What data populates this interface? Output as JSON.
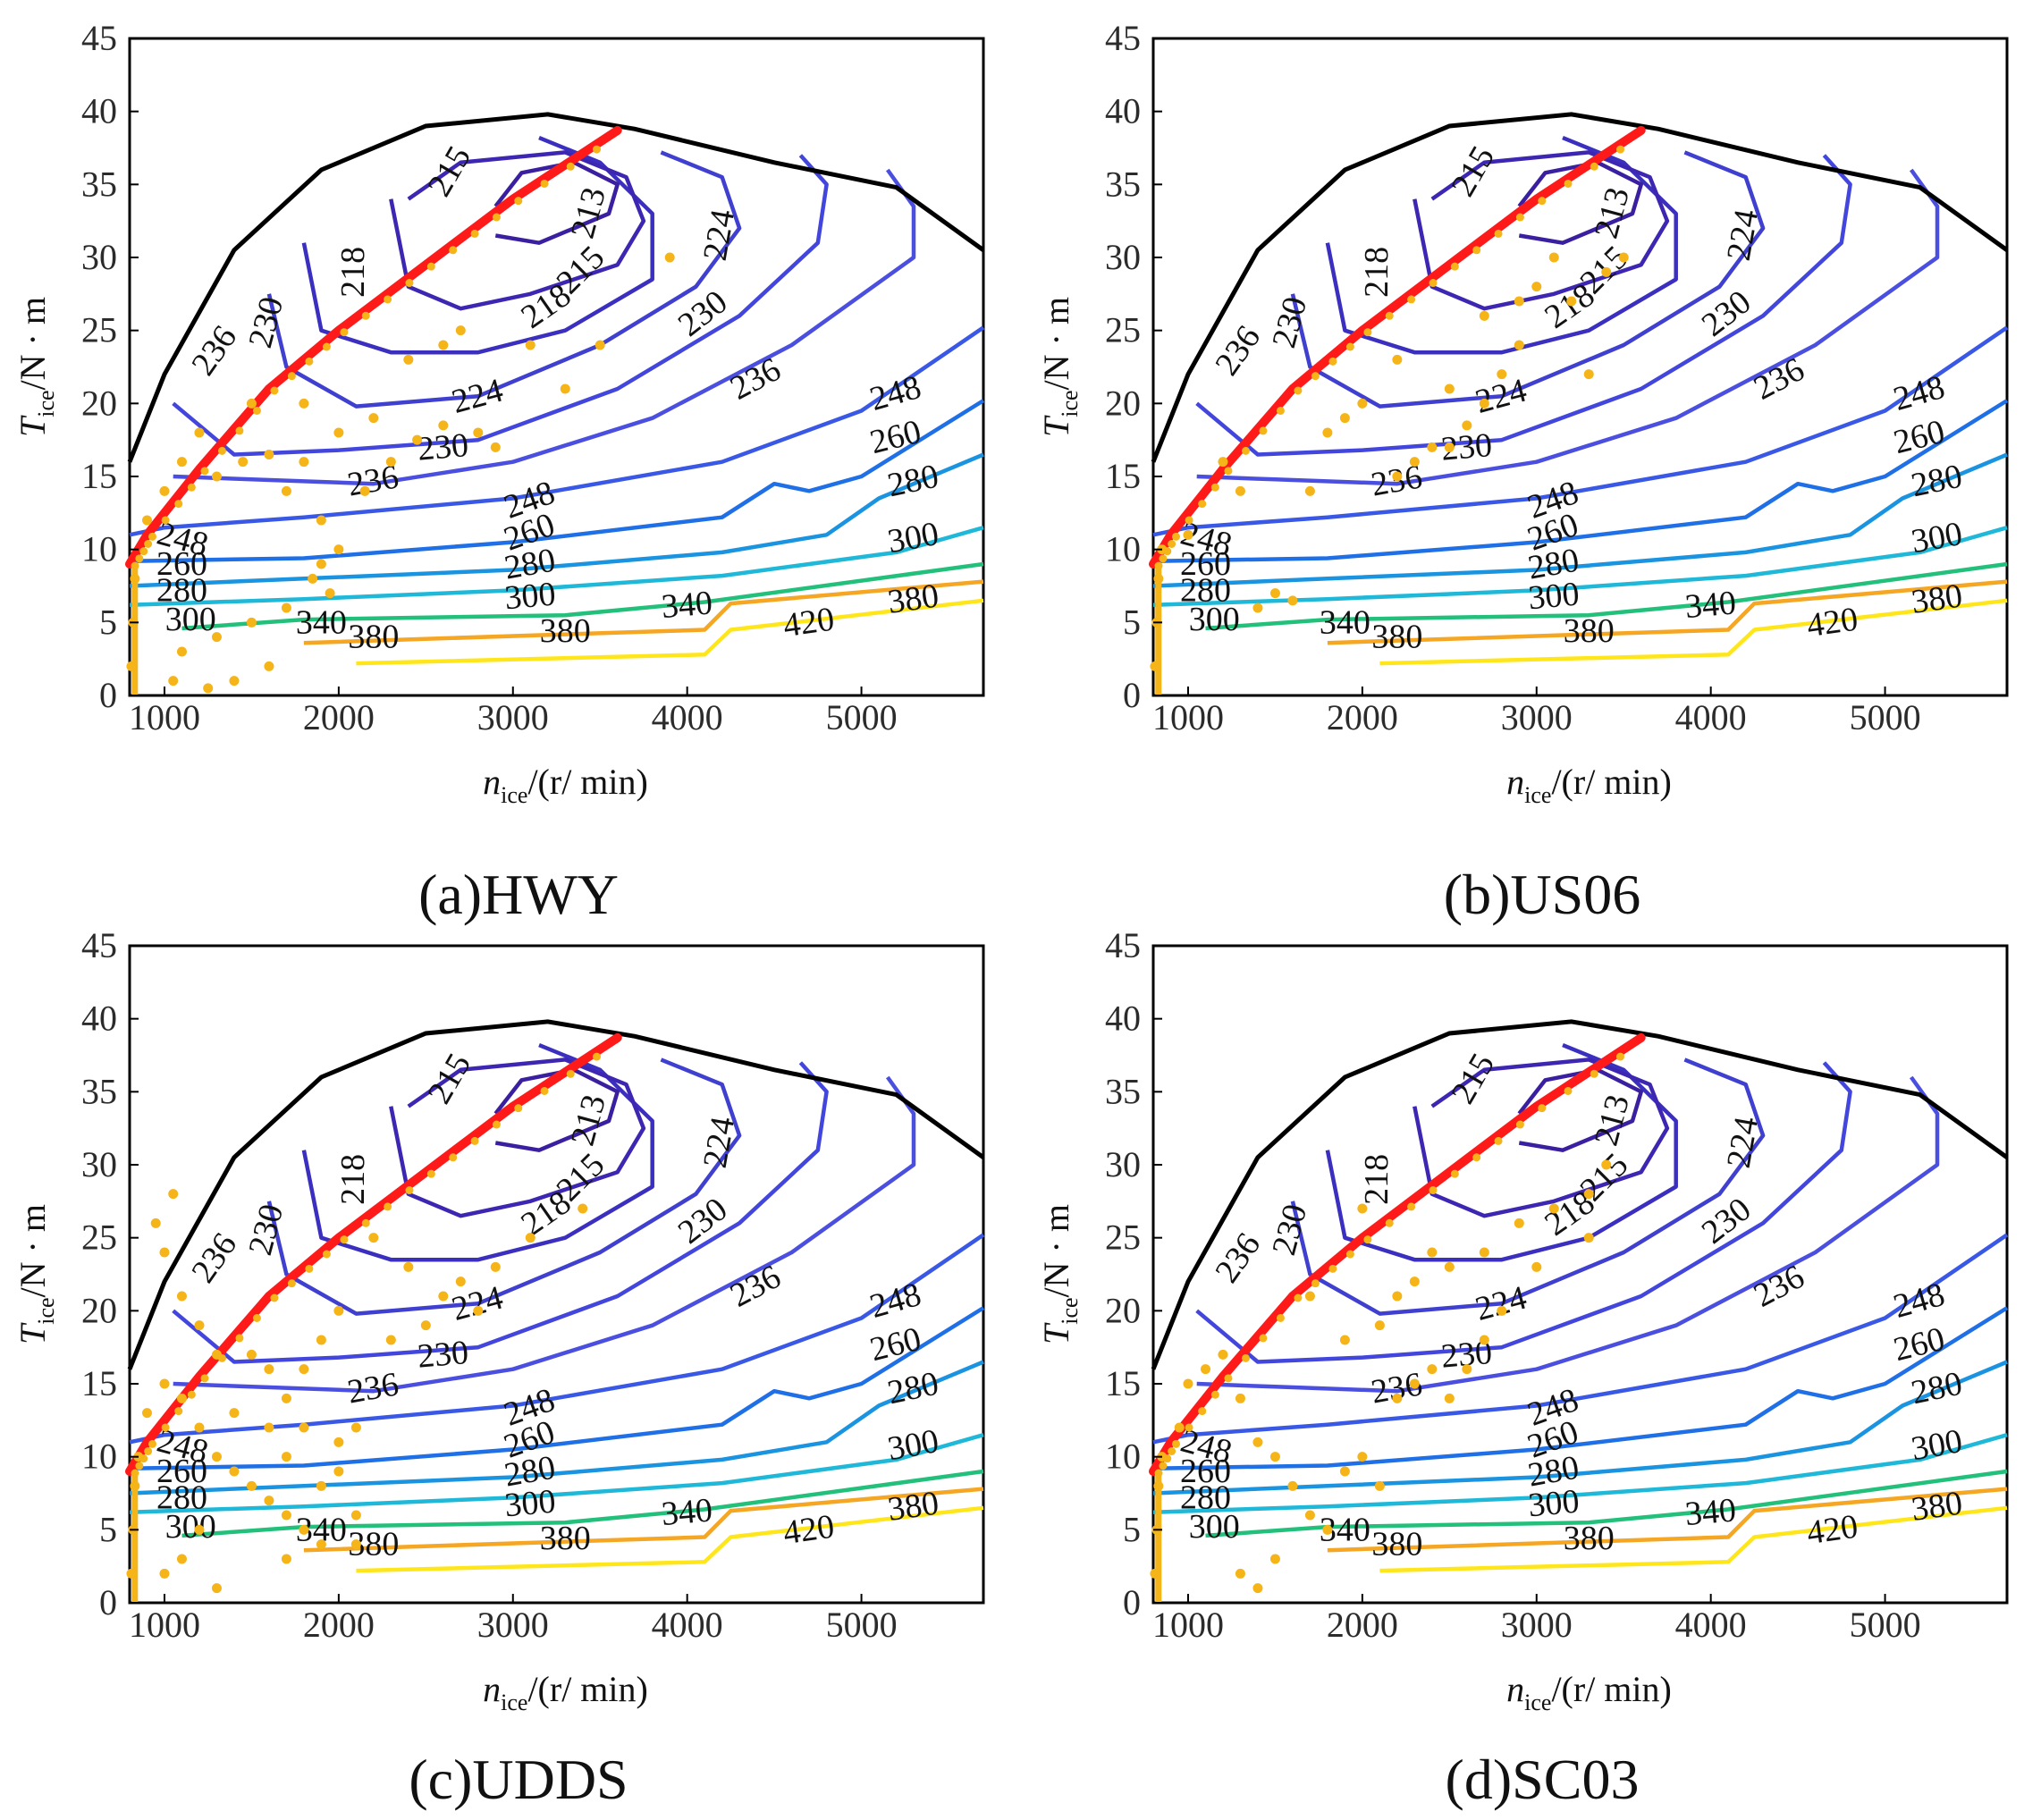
{
  "figure": {
    "colors": {
      "boundary": "#000000",
      "ool": "#ff1a1a",
      "points": "#f5b417",
      "contours": {
        "213": "#3a1fa0",
        "215": "#3d26b2",
        "218": "#3b2fc0",
        "224": "#3f3fd0",
        "230": "#4346dc",
        "236": "#4b4fe0",
        "248": "#3a58e6",
        "260": "#1f6fe6",
        "280": "#1a94e0",
        "300": "#1fb8d8",
        "340": "#22c07a",
        "380": "#f5a623",
        "420": "#ffe61a"
      }
    },
    "axis_text": {
      "x_main": "n",
      "x_sub": "ice",
      "x_unit": "/(r/ min)",
      "y_main": "T",
      "y_sub": "ice",
      "y_unit": "/N · m"
    }
  },
  "chart_data": [
    {
      "type": "contour",
      "panel": "(a)",
      "title": "(a)HWY",
      "xlabel": "n_ice/(r/min)",
      "ylabel": "T_ice/N·m",
      "xlim": [
        800,
        5700
      ],
      "ylim": [
        0,
        45
      ],
      "xticks": [
        1000,
        2000,
        3000,
        4000,
        5000
      ],
      "yticks": [
        0,
        5,
        10,
        15,
        20,
        25,
        30,
        35,
        40,
        45
      ],
      "contour_levels": [
        213,
        215,
        218,
        224,
        230,
        236,
        248,
        260,
        280,
        300,
        340,
        380,
        420
      ],
      "max_torque_boundary": [
        [
          800,
          16
        ],
        [
          1000,
          22
        ],
        [
          1400,
          30.5
        ],
        [
          1900,
          36
        ],
        [
          2500,
          39
        ],
        [
          3200,
          39.8
        ],
        [
          3700,
          38.8
        ],
        [
          4500,
          36.5
        ],
        [
          5200,
          34.8
        ],
        [
          5700,
          30.5
        ]
      ],
      "optimal_line": [
        [
          800,
          9
        ],
        [
          900,
          11
        ],
        [
          1200,
          15.5
        ],
        [
          1600,
          21
        ],
        [
          2000,
          25
        ],
        [
          2500,
          29.5
        ],
        [
          3000,
          34
        ],
        [
          3600,
          38.7
        ]
      ],
      "operating_points": [
        [
          810,
          2
        ],
        [
          820,
          5
        ],
        [
          830,
          8
        ],
        [
          900,
          12
        ],
        [
          1000,
          14
        ],
        [
          1100,
          16
        ],
        [
          1300,
          15
        ],
        [
          1450,
          16
        ],
        [
          1600,
          16.5
        ],
        [
          1700,
          14
        ],
        [
          1800,
          16
        ],
        [
          1900,
          12
        ],
        [
          2000,
          10
        ],
        [
          1850,
          8
        ],
        [
          1950,
          7
        ],
        [
          1700,
          6
        ],
        [
          1500,
          5
        ],
        [
          1300,
          4
        ],
        [
          1100,
          3
        ],
        [
          1050,
          1
        ],
        [
          1250,
          0.5
        ],
        [
          1400,
          1
        ],
        [
          1600,
          2
        ],
        [
          1900,
          9
        ],
        [
          2150,
          14
        ],
        [
          2300,
          16
        ],
        [
          2450,
          17.5
        ],
        [
          2600,
          18.5
        ],
        [
          2800,
          18
        ],
        [
          2400,
          23
        ],
        [
          2600,
          24
        ],
        [
          2700,
          25
        ],
        [
          3100,
          24
        ],
        [
          3500,
          24
        ],
        [
          3900,
          30
        ],
        [
          3300,
          21
        ],
        [
          2900,
          17
        ],
        [
          1800,
          20
        ],
        [
          1500,
          20
        ],
        [
          1200,
          18
        ],
        [
          2000,
          18
        ],
        [
          2200,
          19
        ]
      ]
    },
    {
      "type": "contour",
      "panel": "(b)",
      "title": "(b)US06",
      "xlabel": "n_ice/(r/min)",
      "ylabel": "T_ice/N·m",
      "xlim": [
        800,
        5700
      ],
      "ylim": [
        0,
        45
      ],
      "xticks": [
        1000,
        2000,
        3000,
        4000,
        5000
      ],
      "yticks": [
        0,
        5,
        10,
        15,
        20,
        25,
        30,
        35,
        40,
        45
      ],
      "contour_levels": [
        213,
        215,
        218,
        224,
        230,
        236,
        248,
        260,
        280,
        300,
        340,
        380,
        420
      ],
      "max_torque_boundary": [
        [
          800,
          16
        ],
        [
          1000,
          22
        ],
        [
          1400,
          30.5
        ],
        [
          1900,
          36
        ],
        [
          2500,
          39
        ],
        [
          3200,
          39.8
        ],
        [
          3700,
          38.8
        ],
        [
          4500,
          36.5
        ],
        [
          5200,
          34.8
        ],
        [
          5700,
          30.5
        ]
      ],
      "optimal_line": [
        [
          800,
          9
        ],
        [
          900,
          11
        ],
        [
          1200,
          15.5
        ],
        [
          1600,
          21
        ],
        [
          2000,
          25
        ],
        [
          2500,
          29.5
        ],
        [
          3000,
          34
        ],
        [
          3600,
          38.7
        ]
      ],
      "operating_points": [
        [
          810,
          2
        ],
        [
          820,
          5
        ],
        [
          830,
          8
        ],
        [
          850,
          10
        ],
        [
          1000,
          11
        ],
        [
          1200,
          16
        ],
        [
          1300,
          14
        ],
        [
          1400,
          6
        ],
        [
          1500,
          7
        ],
        [
          1600,
          6.5
        ],
        [
          1700,
          14
        ],
        [
          1800,
          18
        ],
        [
          2000,
          20
        ],
        [
          2200,
          15
        ],
        [
          2300,
          16
        ],
        [
          2400,
          17
        ],
        [
          2500,
          17
        ],
        [
          2600,
          18.5
        ],
        [
          2700,
          20
        ],
        [
          2800,
          22
        ],
        [
          2900,
          24
        ],
        [
          3000,
          28
        ],
        [
          3100,
          30
        ],
        [
          3200,
          27
        ],
        [
          3300,
          22
        ],
        [
          3400,
          29
        ],
        [
          3500,
          30
        ],
        [
          2900,
          27
        ],
        [
          2700,
          26
        ],
        [
          2500,
          21
        ],
        [
          2200,
          23
        ],
        [
          1900,
          19
        ]
      ]
    },
    {
      "type": "contour",
      "panel": "(c)",
      "title": "(c)UDDS",
      "xlabel": "n_ice/(r/min)",
      "ylabel": "T_ice/N·m",
      "xlim": [
        800,
        5700
      ],
      "ylim": [
        0,
        45
      ],
      "xticks": [
        1000,
        2000,
        3000,
        4000,
        5000
      ],
      "yticks": [
        0,
        5,
        10,
        15,
        20,
        25,
        30,
        35,
        40,
        45
      ],
      "contour_levels": [
        213,
        215,
        218,
        224,
        230,
        236,
        248,
        260,
        280,
        300,
        340,
        380,
        420
      ],
      "max_torque_boundary": [
        [
          800,
          16
        ],
        [
          1000,
          22
        ],
        [
          1400,
          30.5
        ],
        [
          1900,
          36
        ],
        [
          2500,
          39
        ],
        [
          3200,
          39.8
        ],
        [
          3700,
          38.8
        ],
        [
          4500,
          36.5
        ],
        [
          5200,
          34.8
        ],
        [
          5700,
          30.5
        ]
      ],
      "optimal_line": [
        [
          800,
          9
        ],
        [
          900,
          11
        ],
        [
          1200,
          15.5
        ],
        [
          1600,
          21
        ],
        [
          2000,
          25
        ],
        [
          2500,
          29.5
        ],
        [
          3000,
          34
        ],
        [
          3600,
          38.7
        ]
      ],
      "operating_points": [
        [
          810,
          2
        ],
        [
          820,
          5
        ],
        [
          830,
          8
        ],
        [
          850,
          10
        ],
        [
          900,
          13
        ],
        [
          1000,
          15
        ],
        [
          1100,
          14
        ],
        [
          1200,
          12
        ],
        [
          1300,
          10
        ],
        [
          1400,
          9
        ],
        [
          1500,
          8
        ],
        [
          1600,
          7
        ],
        [
          1700,
          6
        ],
        [
          1800,
          5
        ],
        [
          1900,
          8
        ],
        [
          2000,
          11
        ],
        [
          2100,
          12
        ],
        [
          1800,
          12
        ],
        [
          1700,
          14
        ],
        [
          1600,
          16
        ],
        [
          1500,
          17
        ],
        [
          1400,
          13
        ],
        [
          1300,
          17
        ],
        [
          1200,
          19
        ],
        [
          1100,
          21
        ],
        [
          1000,
          24
        ],
        [
          950,
          26
        ],
        [
          1050,
          28
        ],
        [
          1200,
          5
        ],
        [
          1100,
          3
        ],
        [
          1000,
          2
        ],
        [
          1300,
          1
        ],
        [
          1700,
          3
        ],
        [
          1900,
          4
        ],
        [
          2100,
          6
        ],
        [
          2300,
          18
        ],
        [
          2500,
          19
        ],
        [
          2600,
          21
        ],
        [
          2700,
          22
        ],
        [
          2900,
          23
        ],
        [
          3100,
          25
        ],
        [
          3400,
          27
        ],
        [
          2800,
          20
        ],
        [
          2400,
          23
        ],
        [
          2200,
          25
        ],
        [
          1800,
          16
        ],
        [
          1900,
          18
        ],
        [
          2000,
          20
        ],
        [
          1600,
          12
        ],
        [
          1700,
          10
        ],
        [
          2000,
          9
        ],
        [
          2100,
          4
        ]
      ]
    },
    {
      "type": "contour",
      "panel": "(d)",
      "title": "(d)SC03",
      "xlabel": "n_ice/(r/min)",
      "ylabel": "T_ice/N·m",
      "xlim": [
        800,
        5700
      ],
      "ylim": [
        0,
        45
      ],
      "xticks": [
        1000,
        2000,
        3000,
        4000,
        5000
      ],
      "yticks": [
        0,
        5,
        10,
        15,
        20,
        25,
        30,
        35,
        40,
        45
      ],
      "contour_levels": [
        213,
        215,
        218,
        224,
        230,
        236,
        248,
        260,
        280,
        300,
        340,
        380,
        420
      ],
      "max_torque_boundary": [
        [
          800,
          16
        ],
        [
          1000,
          22
        ],
        [
          1400,
          30.5
        ],
        [
          1900,
          36
        ],
        [
          2500,
          39
        ],
        [
          3200,
          39.8
        ],
        [
          3700,
          38.8
        ],
        [
          4500,
          36.5
        ],
        [
          5200,
          34.8
        ],
        [
          5700,
          30.5
        ]
      ],
      "optimal_line": [
        [
          800,
          9
        ],
        [
          900,
          11
        ],
        [
          1200,
          15.5
        ],
        [
          1600,
          21
        ],
        [
          2000,
          25
        ],
        [
          2500,
          29.5
        ],
        [
          3000,
          34
        ],
        [
          3600,
          38.7
        ]
      ],
      "operating_points": [
        [
          810,
          2
        ],
        [
          820,
          5
        ],
        [
          830,
          8
        ],
        [
          850,
          10
        ],
        [
          950,
          12
        ],
        [
          1000,
          15
        ],
        [
          1100,
          16
        ],
        [
          1200,
          17
        ],
        [
          1300,
          14
        ],
        [
          1400,
          11
        ],
        [
          1500,
          10
        ],
        [
          1600,
          8
        ],
        [
          1700,
          6
        ],
        [
          1800,
          5
        ],
        [
          1900,
          9
        ],
        [
          2000,
          10
        ],
        [
          2100,
          8
        ],
        [
          1300,
          2
        ],
        [
          1400,
          1
        ],
        [
          1500,
          3
        ],
        [
          2200,
          14
        ],
        [
          2300,
          15
        ],
        [
          2400,
          16
        ],
        [
          2500,
          14
        ],
        [
          2600,
          16
        ],
        [
          2700,
          18
        ],
        [
          2800,
          20
        ],
        [
          2200,
          21
        ],
        [
          2300,
          22
        ],
        [
          2400,
          24
        ],
        [
          2500,
          23
        ],
        [
          2700,
          24
        ],
        [
          2900,
          26
        ],
        [
          3100,
          27
        ],
        [
          3300,
          28
        ],
        [
          3400,
          30
        ],
        [
          3300,
          25
        ],
        [
          3000,
          23
        ],
        [
          2100,
          19
        ],
        [
          1900,
          18
        ],
        [
          1700,
          21
        ],
        [
          2000,
          27
        ]
      ]
    }
  ],
  "panels": [
    {
      "caption": "(a)HWY"
    },
    {
      "caption": "(b)US06"
    },
    {
      "caption": "(c)UDDS"
    },
    {
      "caption": "(d)SC03"
    }
  ]
}
